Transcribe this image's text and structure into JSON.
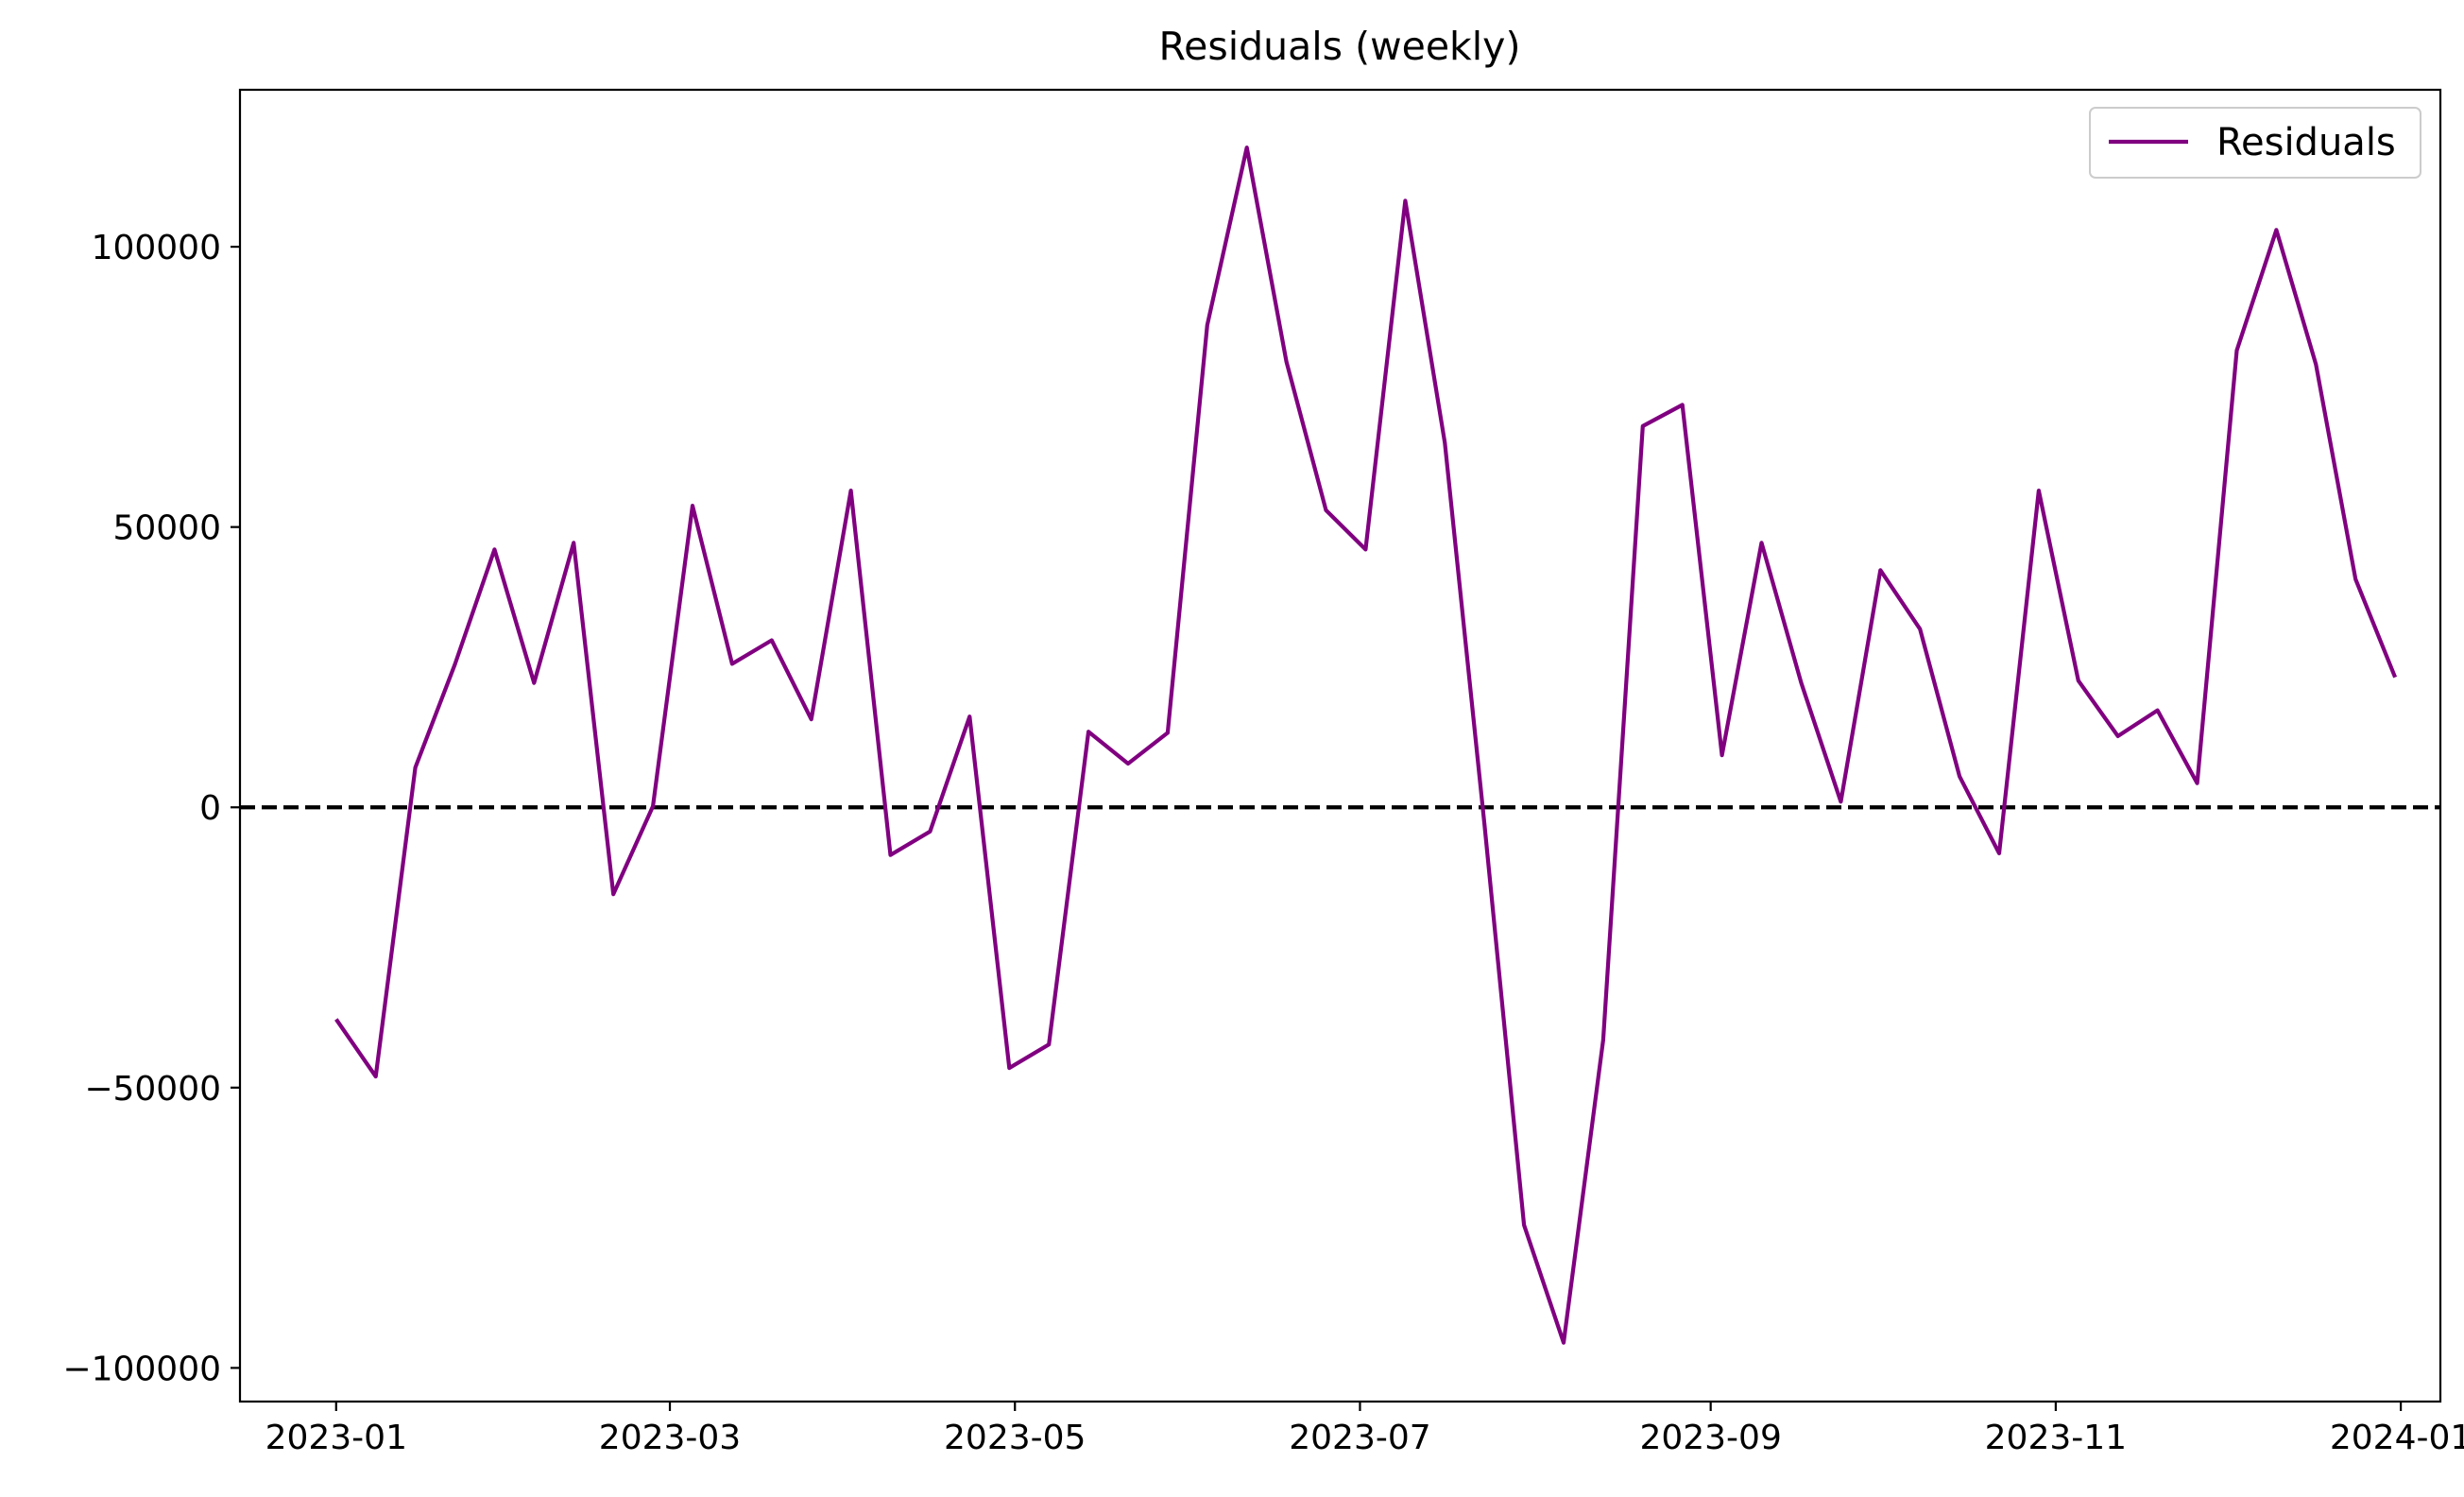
{
  "chart_data": {
    "type": "line",
    "title": "Residuals (weekly)",
    "xlabel": "",
    "ylabel": "",
    "x_tick_labels": [
      "2023-01",
      "2023-03",
      "2023-05",
      "2023-07",
      "2023-09",
      "2023-11",
      "2024-01"
    ],
    "x_ticks": [
      "2023-01-01",
      "2023-03-01",
      "2023-05-01",
      "2023-07-01",
      "2023-09-01",
      "2023-11-01",
      "2024-01-01"
    ],
    "y_ticks": [
      -100000,
      -50000,
      0,
      50000,
      100000
    ],
    "xlim": [
      "2022-12-15",
      "2024-01-08"
    ],
    "ylim": [
      -106000,
      128000
    ],
    "grid": false,
    "legend": {
      "position": "top-right",
      "entries": [
        "Residuals"
      ]
    },
    "reference_line": {
      "y": 0,
      "style": "dashed",
      "color": "#000000"
    },
    "series": [
      {
        "name": "Residuals",
        "color": "#800080",
        "x": [
          "2023-01-01",
          "2023-01-08",
          "2023-01-15",
          "2023-01-22",
          "2023-01-29",
          "2023-02-05",
          "2023-02-12",
          "2023-02-19",
          "2023-02-26",
          "2023-03-05",
          "2023-03-12",
          "2023-03-19",
          "2023-03-26",
          "2023-04-02",
          "2023-04-09",
          "2023-04-16",
          "2023-04-23",
          "2023-04-30",
          "2023-05-07",
          "2023-05-14",
          "2023-05-21",
          "2023-05-28",
          "2023-06-04",
          "2023-06-11",
          "2023-06-18",
          "2023-06-25",
          "2023-07-02",
          "2023-07-09",
          "2023-07-16",
          "2023-07-23",
          "2023-07-30",
          "2023-08-06",
          "2023-08-13",
          "2023-08-20",
          "2023-08-27",
          "2023-09-03",
          "2023-09-10",
          "2023-09-17",
          "2023-09-24",
          "2023-10-01",
          "2023-10-08",
          "2023-10-15",
          "2023-10-22",
          "2023-10-29",
          "2023-11-05",
          "2023-11-12",
          "2023-11-19",
          "2023-11-26",
          "2023-12-03",
          "2023-12-10",
          "2023-12-17",
          "2023-12-24",
          "2023-12-31"
        ],
        "values": [
          -37800,
          -48000,
          7100,
          25500,
          46000,
          22200,
          47200,
          -15500,
          200,
          53800,
          25600,
          29800,
          15700,
          56500,
          -8500,
          -4300,
          16200,
          -46500,
          -42300,
          13500,
          7800,
          13300,
          86000,
          117700,
          79500,
          53000,
          46000,
          108200,
          65000,
          -3000,
          -74500,
          -95500,
          -41500,
          68000,
          71800,
          9300,
          47200,
          22200,
          1000,
          42300,
          31800,
          5500,
          -8200,
          56500,
          22600,
          12700,
          17300,
          4300,
          81500,
          103000,
          79000,
          40700,
          23200
        ]
      }
    ]
  }
}
